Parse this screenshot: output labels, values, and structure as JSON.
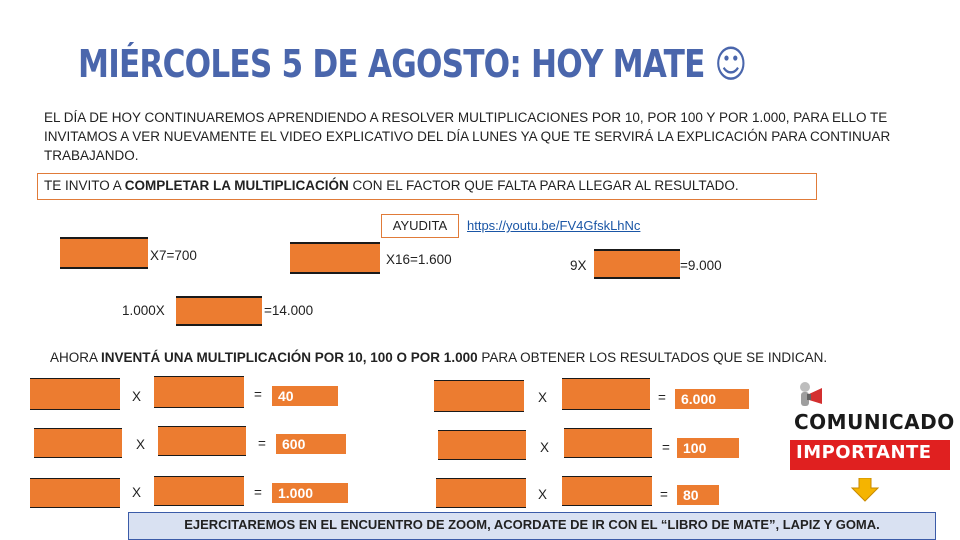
{
  "title": "MIÉRCOLES 5 DE AGOSTO: HOY MATE ☺",
  "intro": "EL DÍA DE HOY CONTINUAREMOS APRENDIENDO A RESOLVER MULTIPLICACIONES POR 10, POR 100 Y POR 1.000, PARA ELLO TE INVITAMOS A VER NUEVAMENTE EL VIDEO EXPLICATIVO DEL DÍA LUNES YA QUE TE SERVIRÁ LA EXPLICACIÓN PARA CONTINUAR TRABAJANDO.",
  "instruction": {
    "pre": "TE INVITO A ",
    "bold": "COMPLETAR LA MULTIPLICACIÓN",
    "post": " CON EL FACTOR QUE FALTA PARA LLEGAR AL RESULTADO."
  },
  "help": {
    "label": "AYUDITA",
    "link": "https://youtu.be/FV4GfskLhNc"
  },
  "exercises_part1": [
    "X7=700",
    "X16=1.600",
    "9X",
    "=9.000",
    "1.000X",
    "=14.000"
  ],
  "section2": {
    "pre": "AHORA ",
    "bold": "INVENTÁ UNA MULTIPLICACIÓN POR 10, 100 O POR 1.000",
    "post": " PARA OBTENER LOS RESULTADOS QUE SE INDICAN."
  },
  "exercises_part2": {
    "times": "X",
    "equals": "=",
    "results": [
      "40",
      "600",
      "1.000",
      "6.000",
      "100",
      "80"
    ]
  },
  "stamp": {
    "line1": "COMUNICADO",
    "line2": "IMPORTANTE"
  },
  "footer": "EJERCITAREMOS EN EL ENCUENTRO DE ZOOM, ACORDATE DE IR CON EL “LIBRO DE MATE”, LAPIZ Y GOMA.",
  "colors": {
    "title": "#4a66ac",
    "blank": "#ec7c30",
    "box_border": "#e07b39",
    "footer_bg": "#d9e1f2",
    "stamp_red": "#e02020"
  },
  "icons": [
    "megaphone-icon",
    "arrow-down-icon"
  ]
}
